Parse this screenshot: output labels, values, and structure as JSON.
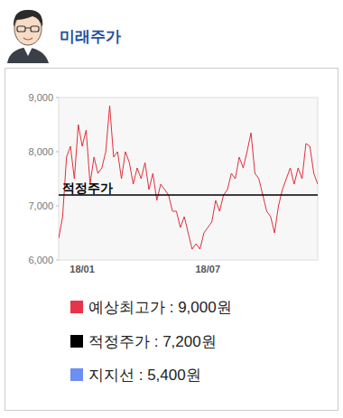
{
  "chart_data": {
    "type": "line",
    "title": "미래주가",
    "categories": [
      null,
      null,
      null,
      null,
      null,
      null,
      "18/01",
      null,
      null,
      null,
      null,
      null,
      null,
      null,
      null,
      null,
      null,
      null,
      null,
      null,
      null,
      null,
      null,
      null,
      null,
      null,
      null,
      null,
      null,
      null,
      null,
      null,
      null,
      null,
      null,
      null,
      null,
      null,
      "18/07",
      null,
      null,
      null,
      null,
      null,
      null,
      null,
      null,
      null,
      null,
      null,
      null,
      null,
      null,
      null,
      null,
      null,
      null,
      null,
      null,
      null,
      null,
      null,
      null,
      null,
      null,
      null,
      null
    ],
    "series": [
      {
        "color": "#e0303c",
        "values": [
          6400,
          6800,
          7900,
          8100,
          7500,
          8500,
          8100,
          8400,
          7400,
          7900,
          7600,
          7700,
          8000,
          8850,
          7900,
          8000,
          7500,
          8000,
          7800,
          7400,
          7700,
          7500,
          7800,
          7300,
          7600,
          7100,
          7400,
          7300,
          7200,
          6900,
          6900,
          6600,
          6800,
          6500,
          6200,
          6300,
          6200,
          6500,
          6600,
          6700,
          7100,
          6900,
          7200,
          7300,
          7600,
          7500,
          7900,
          7700,
          8000,
          8350,
          7600,
          7500,
          7200,
          6900,
          6800,
          6500,
          7000,
          7300,
          7500,
          7700,
          7400,
          7700,
          7500,
          8150,
          8100,
          7600,
          7400
        ]
      }
    ],
    "ylim": [
      6000,
      9000
    ],
    "yticks": [
      {
        "value": 6000,
        "label": "6,000"
      },
      {
        "value": 7000,
        "label": "7,000"
      },
      {
        "value": 8000,
        "label": "8,000"
      },
      {
        "value": 9000,
        "label": "9,000"
      }
    ],
    "annotations": [
      {
        "label": "적정주가",
        "value": 7200,
        "color": "#000000"
      }
    ],
    "legend_items": [
      {
        "label": "예상최고가 : 9,000원",
        "color": "#e8334a"
      },
      {
        "label": "적정주가 : 7,200원",
        "color": "#000000"
      },
      {
        "label": "지지선 : 5,400원",
        "color": "#6b8ff2"
      }
    ]
  }
}
